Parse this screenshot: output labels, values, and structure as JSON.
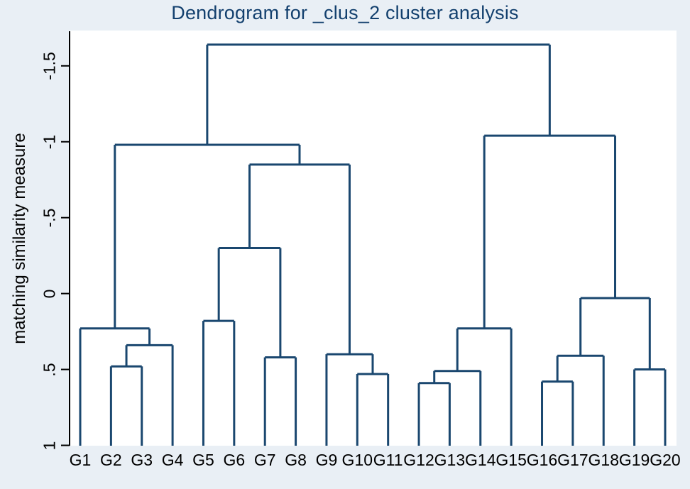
{
  "chart_data": {
    "type": "dendrogram",
    "title": "Dendrogram for _clus_2 cluster analysis",
    "ylabel": "matching similarity measure",
    "xlabel": "",
    "yaxis": {
      "reversed": true,
      "range_top_to_bottom": [
        -1.5,
        1
      ],
      "tick_labels": [
        "-1.5",
        "-1",
        "-.5",
        "0",
        ".5",
        "1"
      ],
      "tick_values": [
        -1.5,
        -1,
        -0.5,
        0,
        0.5,
        1
      ]
    },
    "leaves": [
      "G1",
      "G2",
      "G3",
      "G4",
      "G5",
      "G6",
      "G7",
      "G8",
      "G9",
      "G10",
      "G11",
      "G12",
      "G13",
      "G14",
      "G15",
      "G16",
      "G17",
      "G18",
      "G19",
      "G20"
    ],
    "merges": [
      {
        "id": "m1",
        "children": [
          "G2",
          "G3"
        ],
        "height": 0.48
      },
      {
        "id": "m2",
        "children": [
          "m1",
          "G4"
        ],
        "height": 0.34
      },
      {
        "id": "m3",
        "children": [
          "G1",
          "m2"
        ],
        "height": 0.23
      },
      {
        "id": "m4",
        "children": [
          "G5",
          "G6"
        ],
        "height": 0.18
      },
      {
        "id": "m5",
        "children": [
          "G7",
          "G8"
        ],
        "height": 0.42
      },
      {
        "id": "m6",
        "children": [
          "m4",
          "m5"
        ],
        "height": -0.3
      },
      {
        "id": "m7",
        "children": [
          "G10",
          "G11"
        ],
        "height": 0.53
      },
      {
        "id": "m8",
        "children": [
          "G9",
          "m7"
        ],
        "height": 0.4
      },
      {
        "id": "m9",
        "children": [
          "m6",
          "m8"
        ],
        "height": -0.85
      },
      {
        "id": "m10",
        "children": [
          "m3",
          "m9"
        ],
        "height": -0.98
      },
      {
        "id": "m11",
        "children": [
          "G12",
          "G13"
        ],
        "height": 0.59
      },
      {
        "id": "m12",
        "children": [
          "m11",
          "G14"
        ],
        "height": 0.51
      },
      {
        "id": "m13",
        "children": [
          "m12",
          "G15"
        ],
        "height": 0.23
      },
      {
        "id": "m14",
        "children": [
          "G16",
          "G17"
        ],
        "height": 0.58
      },
      {
        "id": "m15",
        "children": [
          "m14",
          "G18"
        ],
        "height": 0.41
      },
      {
        "id": "m16",
        "children": [
          "G19",
          "G20"
        ],
        "height": 0.5
      },
      {
        "id": "m17",
        "children": [
          "m15",
          "m16"
        ],
        "height": 0.03
      },
      {
        "id": "m18",
        "children": [
          "m13",
          "m17"
        ],
        "height": -1.04
      },
      {
        "id": "m19",
        "children": [
          "m10",
          "m18"
        ],
        "height": -1.64
      }
    ]
  },
  "colors": {
    "background": "#e9eff5",
    "plot_background": "#ffffff",
    "dendrogram_line": "#1a476f",
    "axis": "#000000",
    "title": "#13406e",
    "text": "#000000"
  }
}
